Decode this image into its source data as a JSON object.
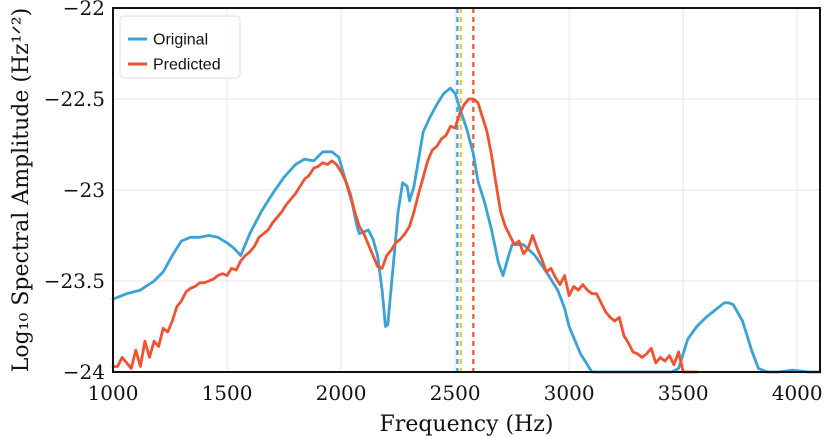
{
  "chart_data": {
    "type": "line",
    "xlabel": "Frequency  (Hz)",
    "ylabel": "Log₁₀ Spectral Amplitude  (Hz¹ᐟ²)",
    "xlim": [
      1000,
      4100
    ],
    "ylim": [
      -24,
      -22
    ],
    "xticks": [
      "1000",
      "1500",
      "2000",
      "2500",
      "3000",
      "3500",
      "4000"
    ],
    "yticks": [
      "−22",
      "−22.5",
      "−23",
      "−23.5",
      "−24"
    ],
    "grid": true,
    "legend_position": "top-left",
    "series": [
      {
        "name": "Original",
        "color": "#3aa2d9",
        "x": [
          1000,
          1060,
          1120,
          1180,
          1220,
          1260,
          1300,
          1340,
          1380,
          1420,
          1460,
          1500,
          1530,
          1560,
          1600,
          1650,
          1700,
          1750,
          1800,
          1840,
          1880,
          1920,
          1960,
          1990,
          2020,
          2050,
          2070,
          2080,
          2100,
          2120,
          2140,
          2160,
          2180,
          2195,
          2205,
          2215,
          2230,
          2250,
          2270,
          2290,
          2300,
          2320,
          2340,
          2360,
          2390,
          2420,
          2450,
          2480,
          2500,
          2520,
          2550,
          2580,
          2600,
          2630,
          2660,
          2690,
          2710,
          2730,
          2750,
          2800,
          2850,
          2900,
          2950,
          2980,
          3000,
          3050,
          3100,
          3150,
          3200,
          3250,
          3300,
          3350,
          3400,
          3450,
          3480,
          3520,
          3560,
          3600,
          3640,
          3680,
          3700,
          3720,
          3760,
          3800,
          3830,
          3870,
          3920,
          3980,
          4050,
          4100
        ],
        "values": [
          -23.6,
          -23.57,
          -23.55,
          -23.5,
          -23.45,
          -23.36,
          -23.28,
          -23.26,
          -23.26,
          -23.25,
          -23.26,
          -23.29,
          -23.32,
          -23.36,
          -23.24,
          -23.12,
          -23.02,
          -22.93,
          -22.86,
          -22.83,
          -22.84,
          -22.79,
          -22.79,
          -22.82,
          -22.95,
          -23.08,
          -23.2,
          -23.24,
          -23.23,
          -23.22,
          -23.27,
          -23.36,
          -23.55,
          -23.75,
          -23.74,
          -23.6,
          -23.4,
          -23.12,
          -22.96,
          -22.98,
          -23.06,
          -22.98,
          -22.83,
          -22.68,
          -22.6,
          -22.53,
          -22.47,
          -22.44,
          -22.47,
          -22.55,
          -22.66,
          -22.8,
          -22.95,
          -23.07,
          -23.22,
          -23.4,
          -23.47,
          -23.38,
          -23.3,
          -23.3,
          -23.36,
          -23.45,
          -23.55,
          -23.65,
          -23.75,
          -23.9,
          -24.02,
          -24.1,
          -24.1,
          -24.08,
          -24.05,
          -24.08,
          -24.1,
          -24.05,
          -23.98,
          -23.82,
          -23.75,
          -23.7,
          -23.66,
          -23.62,
          -23.62,
          -23.63,
          -23.72,
          -23.88,
          -23.98,
          -24.0,
          -24.01,
          -23.99,
          -24.02,
          -24.04
        ]
      },
      {
        "name": "Predicted",
        "color": "#f2522f",
        "x": [
          1000,
          1020,
          1040,
          1060,
          1080,
          1100,
          1120,
          1140,
          1160,
          1180,
          1200,
          1220,
          1240,
          1260,
          1280,
          1300,
          1320,
          1340,
          1360,
          1380,
          1400,
          1420,
          1440,
          1460,
          1480,
          1500,
          1520,
          1540,
          1560,
          1580,
          1600,
          1620,
          1640,
          1660,
          1680,
          1700,
          1720,
          1740,
          1760,
          1780,
          1800,
          1820,
          1840,
          1860,
          1880,
          1900,
          1920,
          1940,
          1960,
          1980,
          2000,
          2020,
          2040,
          2060,
          2080,
          2100,
          2120,
          2140,
          2160,
          2180,
          2200,
          2220,
          2240,
          2260,
          2280,
          2300,
          2320,
          2340,
          2360,
          2380,
          2400,
          2420,
          2440,
          2460,
          2480,
          2500,
          2520,
          2540,
          2560,
          2580,
          2600,
          2620,
          2640,
          2660,
          2680,
          2700,
          2720,
          2740,
          2760,
          2780,
          2800,
          2820,
          2840,
          2860,
          2880,
          2900,
          2920,
          2940,
          2960,
          2980,
          3000,
          3020,
          3040,
          3060,
          3080,
          3100,
          3120,
          3140,
          3160,
          3180,
          3200,
          3220,
          3240,
          3260,
          3280,
          3300,
          3320,
          3340,
          3360,
          3380,
          3400,
          3420,
          3440,
          3460,
          3480,
          3500,
          3520,
          3540,
          3560
        ],
        "values": [
          -23.97,
          -23.97,
          -23.92,
          -23.95,
          -23.98,
          -23.88,
          -23.97,
          -23.83,
          -23.92,
          -23.83,
          -23.86,
          -23.76,
          -23.78,
          -23.72,
          -23.64,
          -23.61,
          -23.56,
          -23.54,
          -23.53,
          -23.51,
          -23.51,
          -23.5,
          -23.49,
          -23.47,
          -23.46,
          -23.47,
          -23.43,
          -23.44,
          -23.39,
          -23.36,
          -23.34,
          -23.31,
          -23.26,
          -23.24,
          -23.22,
          -23.18,
          -23.15,
          -23.12,
          -23.08,
          -23.05,
          -23.02,
          -22.98,
          -22.94,
          -22.92,
          -22.88,
          -22.87,
          -22.85,
          -22.86,
          -22.84,
          -22.86,
          -22.9,
          -22.95,
          -23.02,
          -23.12,
          -23.2,
          -23.24,
          -23.3,
          -23.36,
          -23.42,
          -23.43,
          -23.36,
          -23.33,
          -23.29,
          -23.27,
          -23.24,
          -23.2,
          -23.12,
          -23.02,
          -22.93,
          -22.84,
          -22.78,
          -22.76,
          -22.72,
          -22.7,
          -22.65,
          -22.66,
          -22.58,
          -22.53,
          -22.5,
          -22.5,
          -22.52,
          -22.6,
          -22.68,
          -22.81,
          -22.97,
          -23.12,
          -23.2,
          -23.25,
          -23.3,
          -23.28,
          -23.35,
          -23.32,
          -23.25,
          -23.32,
          -23.38,
          -23.45,
          -23.43,
          -23.48,
          -23.52,
          -23.47,
          -23.58,
          -23.53,
          -23.55,
          -23.52,
          -23.55,
          -23.57,
          -23.57,
          -23.62,
          -23.67,
          -23.7,
          -23.72,
          -23.7,
          -23.8,
          -23.84,
          -23.89,
          -23.9,
          -23.92,
          -23.9,
          -23.87,
          -23.95,
          -23.92,
          -23.94,
          -23.91,
          -23.96,
          -23.89,
          -24.02,
          -24.02,
          -24.02,
          -24.02
        ]
      }
    ],
    "vlines": [
      {
        "x": 2510,
        "color": "#3aa2d9"
      },
      {
        "x": 2525,
        "color": "#f2c13a"
      },
      {
        "x": 2580,
        "color": "#f2522f"
      }
    ]
  }
}
